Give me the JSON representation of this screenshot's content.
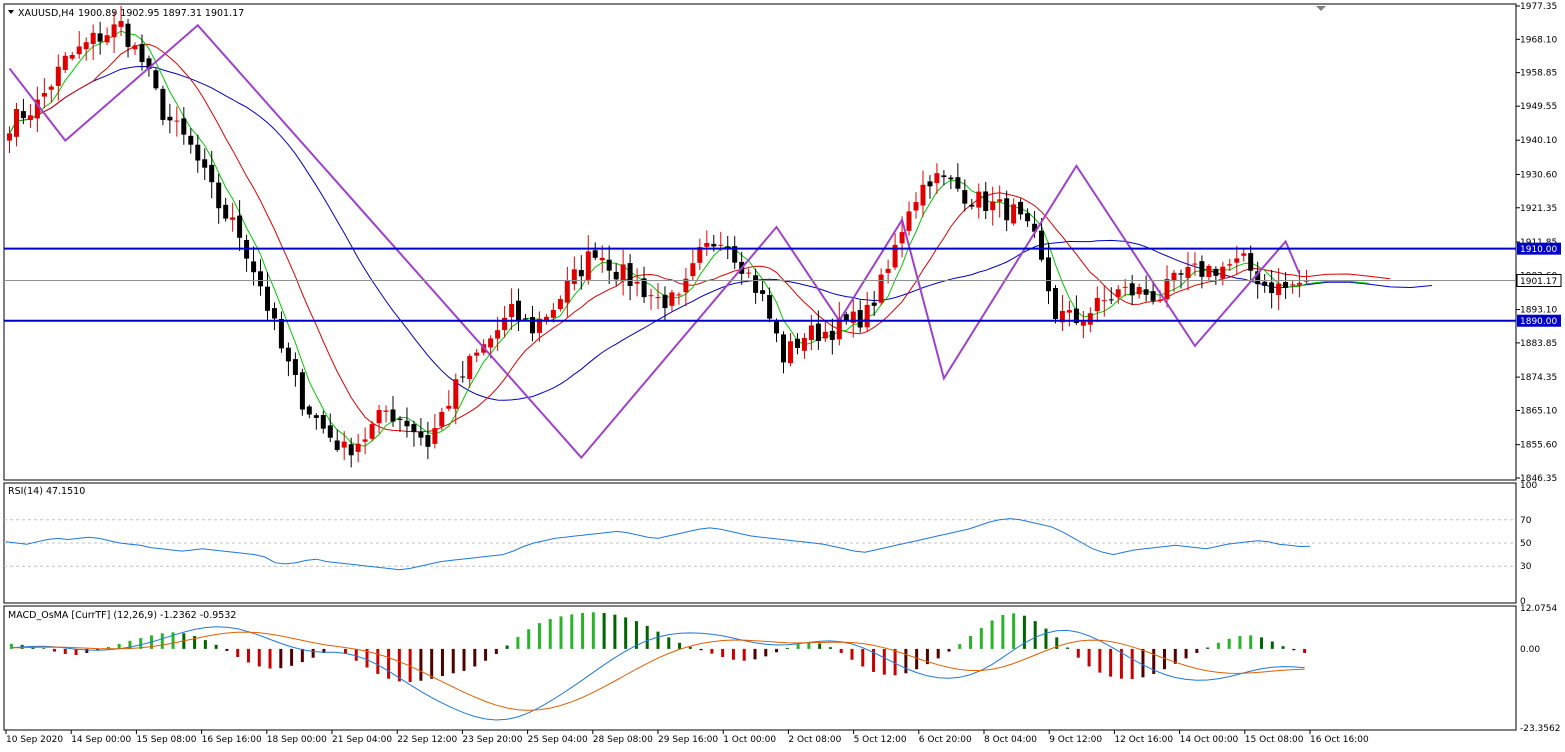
{
  "header": {
    "symbol": "XAUUSD,H4",
    "ohlc": "1900.89 1902.95 1897.31 1901.17"
  },
  "chart_data": [
    {
      "type": "candlestick",
      "title": "XAUUSD,H4 1900.89 1902.95 1897.31 1901.17",
      "y_ticks": [
        "1977.35",
        "1968.10",
        "1958.85",
        "1949.55",
        "1940.10",
        "1930.60",
        "1921.35",
        "1911.85",
        "1902.60",
        "1893.10",
        "1883.85",
        "1874.35",
        "1865.10",
        "1855.60",
        "1846.35"
      ],
      "ylim": [
        1846.35,
        1977.35
      ],
      "x_ticks": [
        "10 Sep 2020",
        "14 Sep 00:00",
        "15 Sep 08:00",
        "16 Sep 16:00",
        "18 Sep 00:00",
        "21 Sep 04:00",
        "22 Sep 12:00",
        "23 Sep 20:00",
        "25 Sep 04:00",
        "28 Sep 08:00",
        "29 Sep 16:00",
        "1 Oct 00:00",
        "2 Oct 08:00",
        "5 Oct 12:00",
        "6 Oct 20:00",
        "8 Oct 04:00",
        "9 Oct 12:00",
        "12 Oct 16:00",
        "14 Oct 00:00",
        "15 Oct 08:00",
        "16 Oct 16:00"
      ],
      "levels": [
        {
          "label": "1910.00",
          "value": 1910.0,
          "color": "#0000c8"
        },
        {
          "label": "1890.00",
          "value": 1890.0,
          "color": "#0000c8"
        }
      ],
      "current_price": {
        "label": "1901.17",
        "value": 1901.17
      },
      "close_path": [
        [
          0,
          1945
        ],
        [
          4,
          1950
        ],
        [
          8,
          1962
        ],
        [
          12,
          1968
        ],
        [
          16,
          1972
        ],
        [
          19,
          1962
        ],
        [
          22,
          1948
        ],
        [
          26,
          1938
        ],
        [
          30,
          1922
        ],
        [
          33,
          1914
        ],
        [
          36,
          1900
        ],
        [
          39,
          1882
        ],
        [
          42,
          1868
        ],
        [
          45,
          1860
        ],
        [
          48,
          1854
        ],
        [
          51,
          1858
        ],
        [
          54,
          1865
        ],
        [
          57,
          1862
        ],
        [
          60,
          1856
        ],
        [
          63,
          1868
        ],
        [
          66,
          1878
        ],
        [
          69,
          1885
        ],
        [
          72,
          1892
        ],
        [
          75,
          1888
        ],
        [
          78,
          1894
        ],
        [
          81,
          1902
        ],
        [
          84,
          1910
        ],
        [
          87,
          1904
        ],
        [
          90,
          1900
        ],
        [
          93,
          1896
        ],
        [
          96,
          1895
        ],
        [
          99,
          1908
        ],
        [
          102,
          1914
        ],
        [
          105,
          1906
        ],
        [
          108,
          1896
        ],
        [
          111,
          1880
        ],
        [
          114,
          1886
        ],
        [
          117,
          1887
        ],
        [
          120,
          1889
        ],
        [
          123,
          1892
        ],
        [
          126,
          1904
        ],
        [
          129,
          1922
        ],
        [
          132,
          1930
        ],
        [
          135,
          1928
        ],
        [
          138,
          1924
        ],
        [
          141,
          1922
        ],
        [
          144,
          1920
        ],
        [
          147,
          1912
        ],
        [
          150,
          1892
        ],
        [
          153,
          1890
        ],
        [
          156,
          1894
        ],
        [
          159,
          1898
        ],
        [
          162,
          1898
        ],
        [
          165,
          1897
        ],
        [
          168,
          1902
        ],
        [
          171,
          1904
        ],
        [
          174,
          1905
        ],
        [
          177,
          1906
        ],
        [
          180,
          1900
        ],
        [
          183,
          1899
        ],
        [
          186,
          1901.17
        ]
      ],
      "ma_colors": {
        "fast": "#00c800",
        "mid": "#e00000",
        "slow": "#0000c8",
        "zigzag": "#a040d0"
      },
      "zigzag": [
        [
          0,
          1960
        ],
        [
          8,
          1940
        ],
        [
          27,
          1972
        ],
        [
          82,
          1852
        ],
        [
          110,
          1916
        ],
        [
          119,
          1890
        ],
        [
          128,
          1918
        ],
        [
          134,
          1874
        ],
        [
          153,
          1933
        ],
        [
          170,
          1883
        ],
        [
          183,
          1912
        ],
        [
          185,
          1903
        ]
      ]
    },
    {
      "type": "line",
      "title": "RSI(14) 47.1510",
      "ylim": [
        0,
        100
      ],
      "y_ticks": [
        "100",
        "70",
        "50",
        "30",
        "0"
      ],
      "levels": [
        70,
        50,
        30
      ],
      "values": [
        51,
        50,
        49,
        51,
        53,
        54,
        53,
        54,
        55,
        54,
        52,
        50,
        49,
        48,
        46,
        45,
        44,
        43,
        44,
        45,
        44,
        43,
        42,
        41,
        40,
        38,
        33,
        32,
        33,
        35,
        36,
        34,
        33,
        32,
        31,
        30,
        29,
        28,
        27,
        28,
        30,
        32,
        34,
        35,
        36,
        37,
        38,
        39,
        40,
        43,
        47,
        50,
        52,
        54,
        55,
        56,
        57,
        58,
        59,
        60,
        59,
        57,
        55,
        54,
        56,
        58,
        60,
        62,
        63,
        62,
        60,
        58,
        56,
        55,
        54,
        53,
        52,
        51,
        50,
        49,
        47,
        45,
        43,
        42,
        44,
        46,
        48,
        50,
        52,
        54,
        56,
        58,
        60,
        62,
        65,
        68,
        70,
        71,
        70,
        68,
        66,
        64,
        60,
        55,
        50,
        45,
        42,
        40,
        42,
        44,
        45,
        46,
        47,
        48,
        47,
        46,
        45,
        47,
        49,
        50,
        51,
        52,
        51,
        49,
        48,
        47,
        47.151
      ]
    },
    {
      "type": "bar",
      "title": "MACD_OsMA [CurrTF] (12,26,9) -1.2362 -0.9532",
      "ylim": [
        -23.3562,
        12.0754
      ],
      "y_ticks": [
        "12.0754",
        "0.00",
        "-23.3562"
      ],
      "histogram": [
        1.5,
        1.2,
        0.8,
        0.2,
        -0.8,
        -1.5,
        -1.8,
        -1.2,
        -0.3,
        0.6,
        1.5,
        2.4,
        3.2,
        4.0,
        4.6,
        4.9,
        4.6,
        3.8,
        2.6,
        1.2,
        -0.6,
        -2.4,
        -4.0,
        -5.2,
        -5.8,
        -5.7,
        -5.0,
        -3.9,
        -2.6,
        -1.2,
        0.0,
        -1.5,
        -3.5,
        -5.5,
        -7.4,
        -8.8,
        -9.6,
        -9.8,
        -9.4,
        -8.8,
        -8.0,
        -7.2,
        -6.5,
        -5.2,
        -3.5,
        -1.5,
        1.0,
        3.5,
        5.8,
        7.6,
        8.8,
        9.6,
        10.2,
        10.6,
        10.8,
        10.6,
        10.1,
        9.3,
        8.2,
        6.8,
        5.1,
        3.4,
        1.8,
        0.6,
        -0.4,
        -1.4,
        -2.4,
        -3.2,
        -3.5,
        -3.1,
        -2.2,
        -1.0,
        0.3,
        1.4,
        2.0,
        1.6,
        0.5,
        -1.2,
        -3.2,
        -5.2,
        -6.8,
        -7.6,
        -7.8,
        -7.2,
        -6.0,
        -4.5,
        -2.8,
        -0.8,
        1.4,
        3.8,
        6.2,
        8.4,
        10.0,
        10.5,
        9.8,
        8.2,
        6.0,
        3.4,
        0.4,
        -2.6,
        -5.2,
        -7.0,
        -8.2,
        -8.8,
        -8.9,
        -8.4,
        -7.4,
        -6.0,
        -4.4,
        -2.8,
        -1.2,
        0.4,
        1.8,
        3.0,
        3.8,
        4.0,
        3.4,
        2.2,
        0.8,
        -0.4,
        -1.2
      ],
      "macd_line_color": "#1e78dc",
      "signal_line_color": "#e06000"
    }
  ],
  "colors": {
    "bull": "#e00000",
    "bear": "#000000",
    "hist_pos": "#28b428",
    "hist_neg": "#c80000",
    "rsi_line": "#1e78dc",
    "level_line": "#0000c8",
    "grid": "#c0c0c0"
  }
}
